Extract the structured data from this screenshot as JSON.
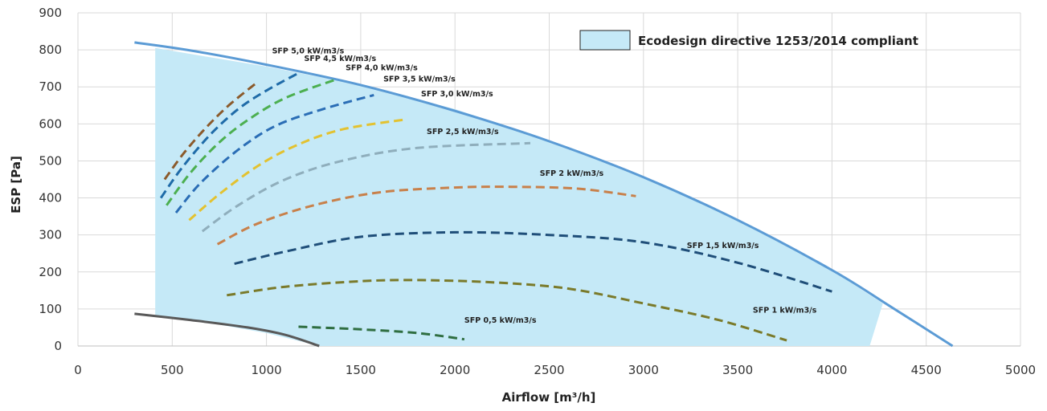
{
  "chart_data": {
    "type": "line",
    "title": "",
    "xlabel": "Airflow [m³/h]",
    "ylabel": "ESP [Pa]",
    "xlim": [
      0,
      5000
    ],
    "ylim": [
      0,
      900
    ],
    "x_ticks": [
      0,
      500,
      1000,
      1500,
      2000,
      2500,
      3000,
      3500,
      4000,
      4500,
      5000
    ],
    "y_ticks": [
      0,
      100,
      200,
      300,
      400,
      500,
      600,
      700,
      800,
      900
    ],
    "grid": true,
    "legend": {
      "position": "top-right",
      "entries": [
        {
          "label": "Ecodesign directive 1253/2014 compliant",
          "color": "#c5e9f7"
        }
      ]
    },
    "compliant_area": {
      "color": "#c5e9f7",
      "points": [
        [
          410,
          100
        ],
        [
          410,
          805
        ],
        [
          700,
          780
        ],
        [
          1000,
          755
        ],
        [
          1500,
          705
        ],
        [
          2000,
          640
        ],
        [
          2500,
          555
        ],
        [
          3000,
          455
        ],
        [
          3500,
          340
        ],
        [
          4000,
          205
        ],
        [
          4270,
          115
        ],
        [
          4200,
          0
        ],
        [
          1280,
          0
        ],
        [
          1000,
          35
        ],
        [
          700,
          62
        ],
        [
          410,
          82
        ]
      ]
    },
    "max_curve": {
      "color": "#5b9bd5",
      "points": [
        [
          300,
          820
        ],
        [
          600,
          798
        ],
        [
          1000,
          760
        ],
        [
          1500,
          705
        ],
        [
          2000,
          635
        ],
        [
          2500,
          553
        ],
        [
          3000,
          456
        ],
        [
          3500,
          340
        ],
        [
          4000,
          205
        ],
        [
          4300,
          110
        ],
        [
          4640,
          0
        ]
      ]
    },
    "min_curve": {
      "color": "#595959",
      "points": [
        [
          300,
          87
        ],
        [
          600,
          70
        ],
        [
          900,
          50
        ],
        [
          1100,
          30
        ],
        [
          1280,
          0
        ]
      ]
    },
    "series": [
      {
        "name": "SFP 5,0 kW/m3/s",
        "color": "#8b5a2b",
        "points": [
          [
            460,
            450
          ],
          [
            560,
            520
          ],
          [
            680,
            590
          ],
          [
            800,
            650
          ],
          [
            950,
            712
          ]
        ],
        "label_at": [
          1030,
          790
        ]
      },
      {
        "name": "SFP 4,5 kW/m3/s",
        "color": "#1f6ba8",
        "points": [
          [
            440,
            400
          ],
          [
            550,
            480
          ],
          [
            700,
            570
          ],
          [
            850,
            640
          ],
          [
            1000,
            690
          ],
          [
            1180,
            740
          ]
        ],
        "label_at": [
          1200,
          770
        ]
      },
      {
        "name": "SFP 4,0 kW/m3/s",
        "color": "#4caf50",
        "points": [
          [
            470,
            380
          ],
          [
            600,
            470
          ],
          [
            750,
            550
          ],
          [
            900,
            610
          ],
          [
            1100,
            670
          ],
          [
            1370,
            720
          ]
        ],
        "label_at": [
          1420,
          745
        ]
      },
      {
        "name": "SFP 3,5 kW/m3/s",
        "color": "#2a6db5",
        "points": [
          [
            520,
            360
          ],
          [
            650,
            440
          ],
          [
            850,
            530
          ],
          [
            1050,
            595
          ],
          [
            1300,
            640
          ],
          [
            1570,
            678
          ]
        ],
        "label_at": [
          1620,
          715
        ]
      },
      {
        "name": "SFP 3,0 kW/m3/s",
        "color": "#e3c230",
        "points": [
          [
            590,
            340
          ],
          [
            750,
            410
          ],
          [
            950,
            485
          ],
          [
            1150,
            540
          ],
          [
            1400,
            585
          ],
          [
            1740,
            612
          ]
        ],
        "label_at": [
          1820,
          675
        ]
      },
      {
        "name": "SFP 2,5 kW/m3/s",
        "color": "#8faebc",
        "points": [
          [
            660,
            310
          ],
          [
            850,
            380
          ],
          [
            1100,
            450
          ],
          [
            1400,
            500
          ],
          [
            1800,
            535
          ],
          [
            2400,
            548
          ]
        ],
        "label_at": [
          1850,
          573
        ]
      },
      {
        "name": "SFP 2 kW/m3/s",
        "color": "#c8804a",
        "points": [
          [
            740,
            275
          ],
          [
            950,
            330
          ],
          [
            1250,
            380
          ],
          [
            1600,
            415
          ],
          [
            2000,
            428
          ],
          [
            2300,
            430
          ],
          [
            2650,
            425
          ],
          [
            2960,
            405
          ]
        ],
        "label_at": [
          2450,
          460
        ]
      },
      {
        "name": "SFP 1,5 kW/m3/s",
        "color": "#1f4e79",
        "points": [
          [
            830,
            222
          ],
          [
            1100,
            255
          ],
          [
            1500,
            295
          ],
          [
            2000,
            307
          ],
          [
            2500,
            300
          ],
          [
            3000,
            280
          ],
          [
            3500,
            225
          ],
          [
            4000,
            147
          ]
        ],
        "label_at": [
          3230,
          265
        ]
      },
      {
        "name": "SFP 1 kW/m3/s",
        "color": "#7a7a2a",
        "points": [
          [
            790,
            137
          ],
          [
            1100,
            160
          ],
          [
            1500,
            175
          ],
          [
            1800,
            178
          ],
          [
            2200,
            172
          ],
          [
            2600,
            155
          ],
          [
            3000,
            115
          ],
          [
            3400,
            70
          ],
          [
            3760,
            15
          ]
        ],
        "label_at": [
          3580,
          90
        ]
      },
      {
        "name": "SFP 0,5 kW/m3/s",
        "color": "#2f6e41",
        "points": [
          [
            1170,
            52
          ],
          [
            1500,
            45
          ],
          [
            1800,
            35
          ],
          [
            2050,
            18
          ]
        ],
        "label_at": [
          2050,
          63
        ]
      }
    ]
  }
}
